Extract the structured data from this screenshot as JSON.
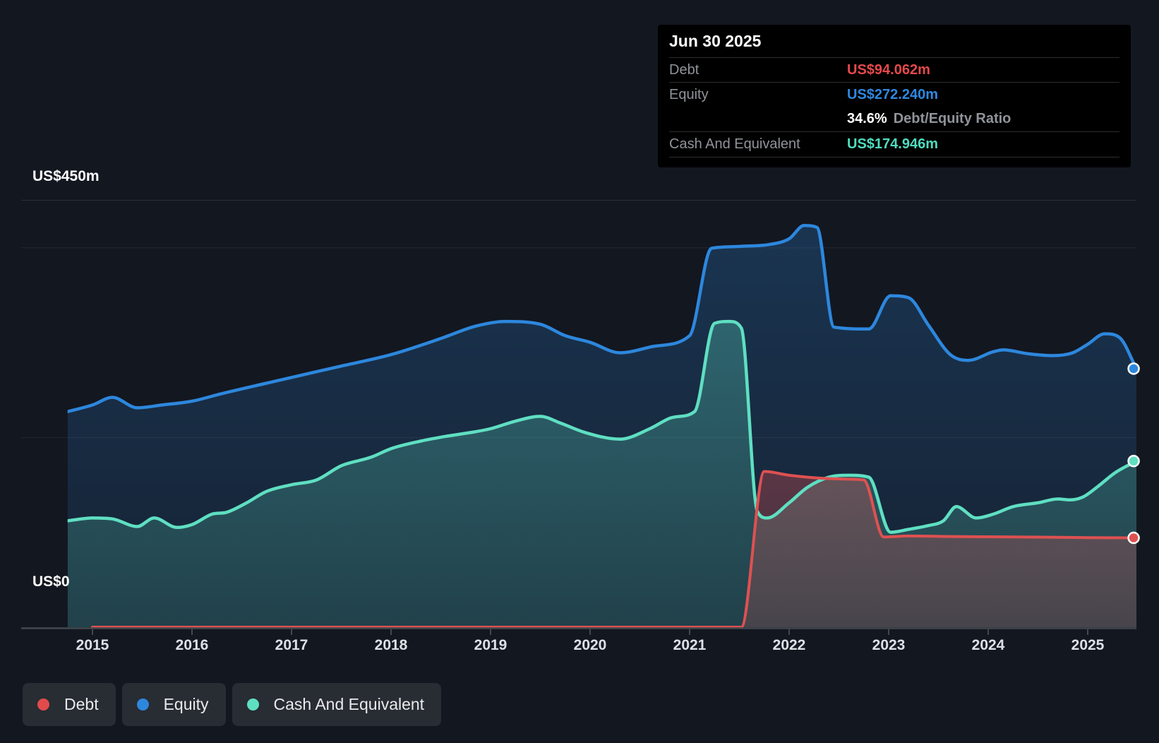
{
  "tooltip": {
    "date": "Jun 30 2025",
    "debt_label": "Debt",
    "debt_value": "US$94.062m",
    "equity_label": "Equity",
    "equity_value": "US$272.240m",
    "ratio_value": "34.6%",
    "ratio_label": "Debt/Equity Ratio",
    "cash_label": "Cash And Equivalent",
    "cash_value": "US$174.946m"
  },
  "y_axis": {
    "top_label": "US$450m",
    "bottom_label": "US$0"
  },
  "x_axis": {
    "ticks": [
      "2015",
      "2016",
      "2017",
      "2018",
      "2019",
      "2020",
      "2021",
      "2022",
      "2023",
      "2024",
      "2025"
    ]
  },
  "legend": {
    "items": [
      {
        "id": "debt",
        "label": "Debt",
        "color": "#e04b4b"
      },
      {
        "id": "equity",
        "label": "Equity",
        "color": "#2d87dd"
      },
      {
        "id": "cash",
        "label": "Cash And Equivalent",
        "color": "#5fdfc2"
      }
    ]
  },
  "colors": {
    "background": "#131720",
    "tooltip_bg": "#000000",
    "grid": "rgba(255,255,255,0.09)",
    "axis": "#43484f",
    "debt": "#de5151",
    "equity": "#2d87dd",
    "cash": "#5fdfc2"
  },
  "chart_data": {
    "type": "area",
    "y_unit": "US$ millions",
    "x_range": [
      2014.75,
      2025.49
    ],
    "y_range": [
      0,
      450
    ],
    "gridline_values": [
      450,
      400,
      200
    ],
    "y_tick_labels": {
      "450": "US$450m",
      "0": "US$0"
    },
    "legend_position": "bottom-left",
    "series": [
      {
        "id": "equity",
        "name": "Equity",
        "color": "#2d87dd",
        "points": [
          [
            2014.75,
            227
          ],
          [
            2015.0,
            234
          ],
          [
            2015.2,
            242
          ],
          [
            2015.45,
            231
          ],
          [
            2015.7,
            234
          ],
          [
            2016.0,
            238
          ],
          [
            2016.3,
            246
          ],
          [
            2016.75,
            257
          ],
          [
            2017.0,
            263
          ],
          [
            2017.5,
            275
          ],
          [
            2018.0,
            287
          ],
          [
            2018.5,
            304
          ],
          [
            2018.85,
            317
          ],
          [
            2019.15,
            322
          ],
          [
            2019.5,
            319
          ],
          [
            2019.75,
            307
          ],
          [
            2020.0,
            300
          ],
          [
            2020.3,
            289
          ],
          [
            2020.6,
            295
          ],
          [
            2021.0,
            307
          ],
          [
            2021.22,
            399
          ],
          [
            2021.5,
            401
          ],
          [
            2021.8,
            403
          ],
          [
            2022.0,
            409
          ],
          [
            2022.15,
            423
          ],
          [
            2022.28,
            421
          ],
          [
            2022.45,
            316
          ],
          [
            2022.8,
            314
          ],
          [
            2023.02,
            349
          ],
          [
            2023.2,
            347
          ],
          [
            2023.4,
            318
          ],
          [
            2023.62,
            287
          ],
          [
            2023.8,
            281
          ],
          [
            2024.05,
            290
          ],
          [
            2024.15,
            292
          ],
          [
            2024.4,
            288
          ],
          [
            2024.65,
            286
          ],
          [
            2024.85,
            289
          ],
          [
            2025.0,
            298
          ],
          [
            2025.17,
            309
          ],
          [
            2025.32,
            305
          ],
          [
            2025.49,
            272.24
          ]
        ]
      },
      {
        "id": "cash",
        "name": "Cash And Equivalent",
        "color": "#5fdfc2",
        "points": [
          [
            2014.75,
            112
          ],
          [
            2015.0,
            115
          ],
          [
            2015.2,
            114
          ],
          [
            2015.45,
            106
          ],
          [
            2015.62,
            115
          ],
          [
            2015.85,
            105
          ],
          [
            2016.0,
            108
          ],
          [
            2016.2,
            119
          ],
          [
            2016.35,
            121
          ],
          [
            2016.55,
            131
          ],
          [
            2016.75,
            143
          ],
          [
            2017.0,
            150
          ],
          [
            2017.25,
            155
          ],
          [
            2017.5,
            170
          ],
          [
            2017.8,
            179
          ],
          [
            2018.0,
            188
          ],
          [
            2018.3,
            196
          ],
          [
            2018.55,
            201
          ],
          [
            2018.8,
            205
          ],
          [
            2019.0,
            209
          ],
          [
            2019.25,
            217
          ],
          [
            2019.5,
            222
          ],
          [
            2019.7,
            215
          ],
          [
            2019.95,
            205
          ],
          [
            2020.3,
            198
          ],
          [
            2020.6,
            209
          ],
          [
            2020.8,
            220
          ],
          [
            2021.05,
            227
          ],
          [
            2021.25,
            320
          ],
          [
            2021.4,
            322
          ],
          [
            2021.52,
            315
          ],
          [
            2021.68,
            122
          ],
          [
            2021.78,
            115
          ],
          [
            2022.0,
            131
          ],
          [
            2022.18,
            147
          ],
          [
            2022.4,
            158
          ],
          [
            2022.6,
            160
          ],
          [
            2022.8,
            158
          ],
          [
            2023.02,
            100
          ],
          [
            2023.2,
            103
          ],
          [
            2023.4,
            107
          ],
          [
            2023.55,
            112
          ],
          [
            2023.68,
            127
          ],
          [
            2023.88,
            115
          ],
          [
            2024.05,
            119
          ],
          [
            2024.25,
            127
          ],
          [
            2024.5,
            131
          ],
          [
            2024.7,
            135
          ],
          [
            2024.82,
            134
          ],
          [
            2024.95,
            137
          ],
          [
            2025.1,
            148
          ],
          [
            2025.28,
            163
          ],
          [
            2025.49,
            174.946
          ]
        ]
      },
      {
        "id": "debt",
        "name": "Debt",
        "color": "#de5151",
        "points": [
          [
            2015.0,
            0
          ],
          [
            2016.0,
            0
          ],
          [
            2017.0,
            0
          ],
          [
            2018.0,
            0
          ],
          [
            2019.0,
            0
          ],
          [
            2020.0,
            0
          ],
          [
            2021.0,
            0
          ],
          [
            2021.52,
            0
          ],
          [
            2021.75,
            164
          ],
          [
            2022.0,
            160
          ],
          [
            2022.3,
            157
          ],
          [
            2022.55,
            156
          ],
          [
            2022.75,
            155
          ],
          [
            2022.95,
            95
          ],
          [
            2023.2,
            96
          ],
          [
            2023.6,
            95.5
          ],
          [
            2024.0,
            95.2
          ],
          [
            2024.5,
            94.8
          ],
          [
            2025.0,
            94.3
          ],
          [
            2025.49,
            94.062
          ]
        ]
      }
    ]
  }
}
